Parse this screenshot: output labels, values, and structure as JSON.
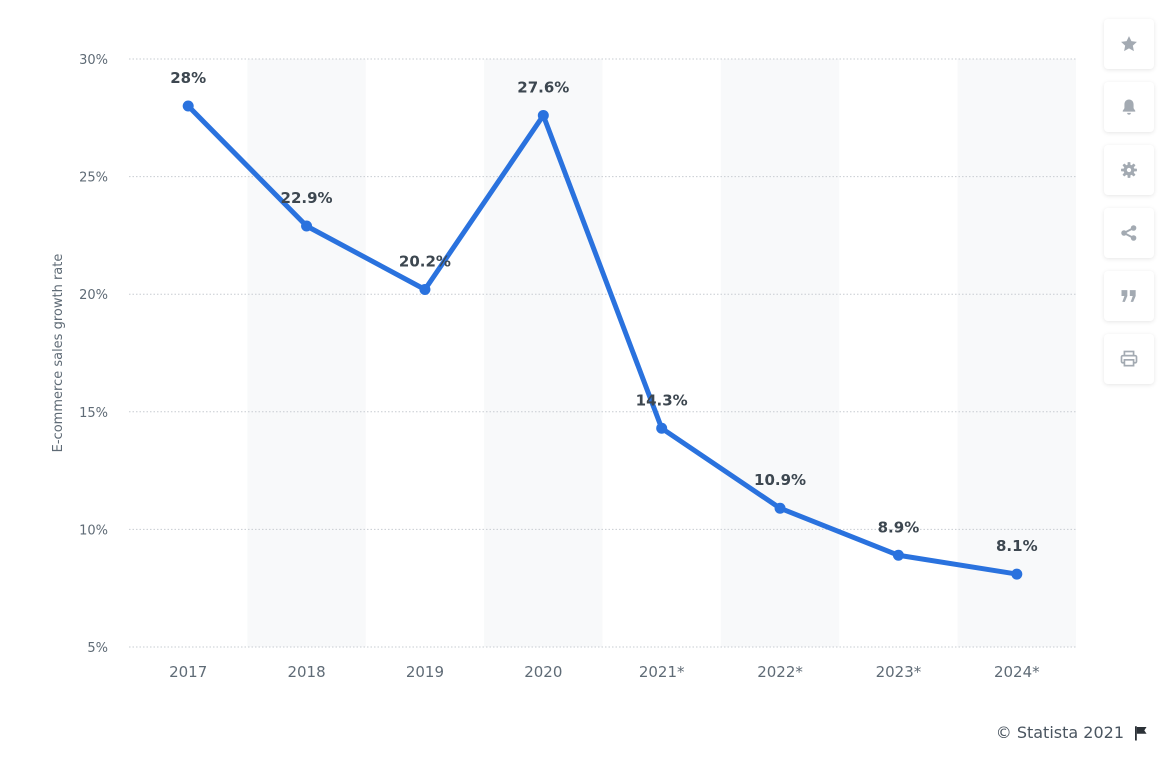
{
  "chart_data": {
    "type": "line",
    "categories": [
      "2017",
      "2018",
      "2019",
      "2020",
      "2021*",
      "2022*",
      "2023*",
      "2024*"
    ],
    "values": [
      28,
      22.9,
      20.2,
      27.6,
      14.3,
      10.9,
      8.9,
      8.1
    ],
    "data_labels": [
      "28%",
      "22.9%",
      "20.2%",
      "27.6%",
      "14.3%",
      "10.9%",
      "8.9%",
      "8.1%"
    ],
    "ylabel": "E-commerce sales growth rate",
    "ylim": [
      5,
      30
    ],
    "yticks": [
      5,
      10,
      15,
      20,
      25,
      30
    ],
    "ytick_labels": [
      "5%",
      "10%",
      "15%",
      "20%",
      "25%",
      "30%"
    ],
    "grid": true,
    "line_color": "#2a72de",
    "band_color": "#f8f9fa"
  },
  "toolbar": {
    "items": [
      {
        "name": "star-icon"
      },
      {
        "name": "bell-icon"
      },
      {
        "name": "gear-icon"
      },
      {
        "name": "share-icon"
      },
      {
        "name": "quote-icon"
      },
      {
        "name": "print-icon"
      }
    ],
    "icon_color": "#a3aab2"
  },
  "footer": {
    "copyright": "© Statista 2021",
    "flag_icon": "flag-icon"
  }
}
